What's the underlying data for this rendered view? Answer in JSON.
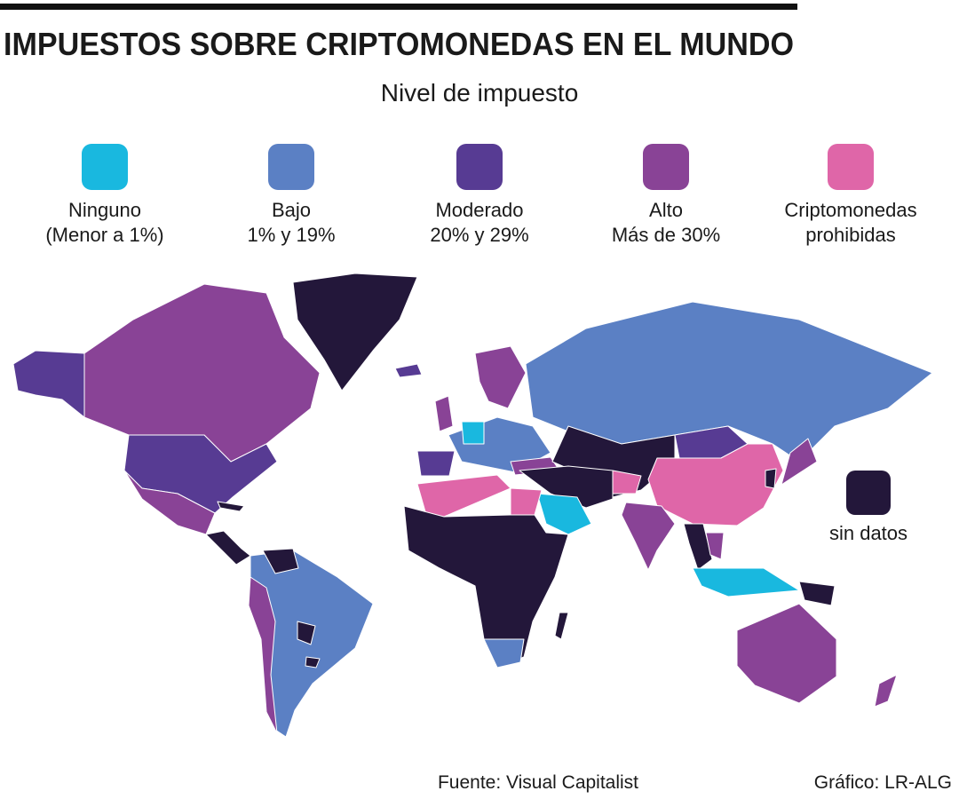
{
  "header": {
    "title": "IMPUESTOS SOBRE CRIPTOMONEDAS EN EL MUNDO",
    "subtitle": "Nivel de impuesto"
  },
  "legend": {
    "items": [
      {
        "color": "#19b8df",
        "lines": [
          "Ninguno",
          "(Menor a 1%)"
        ]
      },
      {
        "color": "#5b80c4",
        "lines": [
          "Bajo",
          "1% y 19%"
        ]
      },
      {
        "color": "#573b93",
        "lines": [
          "Moderado",
          "20% y 29%"
        ]
      },
      {
        "color": "#894396",
        "lines": [
          "Alto",
          "Más de 30%"
        ]
      },
      {
        "color": "#df66a8",
        "lines": [
          "Criptomonedas",
          "prohibidas"
        ]
      }
    ]
  },
  "no_data": {
    "color": "#23173a",
    "label": "sin datos"
  },
  "footer": {
    "source": "Fuente: Visual Capitalist",
    "credit": "Gráfico: LR-ALG"
  }
}
